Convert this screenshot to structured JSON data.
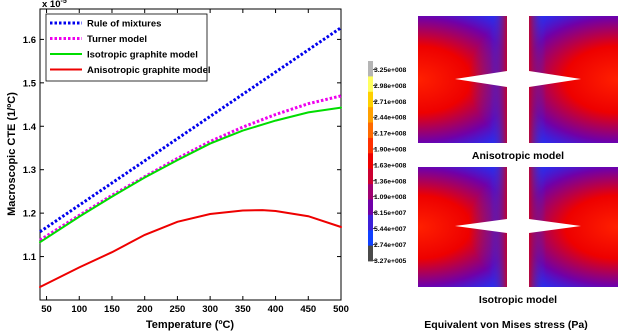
{
  "chart_data": {
    "type": "line",
    "title": "",
    "xlabel": "Temperature (ºC)",
    "ylabel": "Macroscopic CTE (1/ºC)",
    "y_multiplier": "x 10",
    "y_exponent": "-5",
    "xlim": [
      40,
      500
    ],
    "ylim": [
      1.0,
      1.67
    ],
    "xticks": [
      50,
      100,
      150,
      200,
      250,
      300,
      350,
      400,
      450,
      500
    ],
    "yticks": [
      1.1,
      1.2,
      1.3,
      1.4,
      1.5,
      1.6
    ],
    "grid": false,
    "legend_position": "top-left",
    "series": [
      {
        "name": "Rule of mixtures",
        "color": "#0000ee",
        "style": "dotted",
        "x": [
          40,
          500
        ],
        "y": [
          1.157,
          1.627
        ]
      },
      {
        "name": "Turner model",
        "color": "#ee00ee",
        "style": "dotted",
        "x": [
          40,
          100,
          150,
          200,
          250,
          300,
          350,
          400,
          450,
          500
        ],
        "y": [
          1.138,
          1.195,
          1.241,
          1.284,
          1.326,
          1.365,
          1.398,
          1.427,
          1.452,
          1.47
        ]
      },
      {
        "name": "Isotropic graphite model",
        "color": "#00dd00",
        "style": "solid",
        "x": [
          40,
          100,
          150,
          200,
          250,
          300,
          350,
          400,
          450,
          500
        ],
        "y": [
          1.133,
          1.192,
          1.238,
          1.282,
          1.322,
          1.36,
          1.39,
          1.413,
          1.432,
          1.443
        ]
      },
      {
        "name": "Anisotropic graphite model",
        "color": "#ee0000",
        "style": "solid",
        "x": [
          40,
          100,
          150,
          200,
          250,
          300,
          350,
          380,
          400,
          450,
          500
        ],
        "y": [
          1.03,
          1.075,
          1.11,
          1.15,
          1.18,
          1.198,
          1.206,
          1.207,
          1.205,
          1.193,
          1.168
        ]
      }
    ]
  },
  "stress_panel": {
    "colorbar_labels": [
      "3.25e+008",
      "2.98e+008",
      "2.71e+008",
      "2.44e+008",
      "2.17e+008",
      "1.90e+008",
      "1.63e+008",
      "1.36e+008",
      "1.09e+008",
      "8.15e+007",
      "5.44e+007",
      "2.74e+007",
      "3.27e+005"
    ],
    "colorbar_colors": [
      "#b5b5b5",
      "#ffff60",
      "#ffd000",
      "#ffa000",
      "#ff6a00",
      "#ff3000",
      "#ee0000",
      "#cc0030",
      "#a00070",
      "#7000a8",
      "#3c20d8",
      "#1040ff",
      "#4a4a4a"
    ],
    "top_caption": "Anisotropic model",
    "bottom_caption": "Isotropic model",
    "footer": "Equivalent von Mises stress (Pa)"
  }
}
